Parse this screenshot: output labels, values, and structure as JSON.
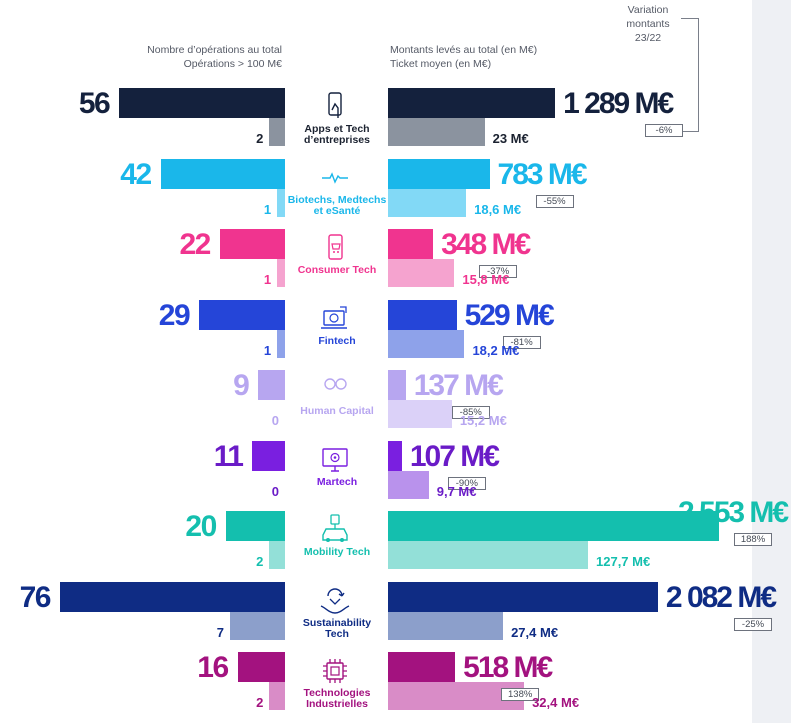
{
  "headers": {
    "left_line1": "Nombre d’opérations au total",
    "left_line2": "Opérations > 100 M€",
    "right_line1": "Montants levés au total (en M€)",
    "right_line2": "Ticket moyen (en M€)",
    "variation_line1": "Variation",
    "variation_line2": "montants",
    "variation_line3": "23/22"
  },
  "chart_data": {
    "type": "bar",
    "title": "",
    "orientation": "horizontal-butterfly",
    "categories": [
      "Apps et Tech d’entreprises",
      "Biotechs, Medtechs et eSanté",
      "Consumer Tech",
      "Fintech",
      "Human Capital",
      "Martech",
      "Mobility Tech",
      "Sustainability Tech",
      "Technologies Industrielles"
    ],
    "category_label_lines": [
      [
        "Apps et Tech",
        "d’entreprises"
      ],
      [
        "Biotechs, Medtechs",
        "et eSanté"
      ],
      [
        "Consumer Tech"
      ],
      [
        "Fintech"
      ],
      [
        "Human Capital"
      ],
      [
        "Martech"
      ],
      [
        "Mobility Tech"
      ],
      [
        "Sustainability",
        "Tech"
      ],
      [
        "Technologies",
        "Industrielles"
      ]
    ],
    "series": [
      {
        "name": "Nombre d’opérations au total",
        "values": [
          56,
          42,
          22,
          29,
          9,
          11,
          20,
          76,
          16
        ]
      },
      {
        "name": "Opérations > 100 M€",
        "values": [
          2,
          1,
          1,
          1,
          0,
          0,
          2,
          7,
          2
        ]
      },
      {
        "name": "Montants levés au total (en M€)",
        "values": [
          1289,
          783,
          348,
          529,
          137,
          107,
          2553,
          2082,
          518
        ]
      },
      {
        "name": "Ticket moyen (en M€)",
        "values": [
          23,
          18.6,
          15.8,
          18.2,
          15.2,
          9.7,
          127.7,
          27.4,
          32.4
        ]
      }
    ],
    "labels": {
      "operations": [
        "56",
        "42",
        "22",
        "29",
        "9",
        "11",
        "20",
        "76",
        "16"
      ],
      "ops_over_100": [
        "2",
        "1",
        "1",
        "1",
        "0",
        "0",
        "2",
        "7",
        "2"
      ],
      "amounts": [
        "1 289 M€",
        "783 M€",
        "348 M€",
        "529 M€",
        "137 M€",
        "107 M€",
        "2 553 M€",
        "2 082 M€",
        "518 M€"
      ],
      "tickets": [
        "23 M€",
        "18,6 M€",
        "15,8 M€",
        "18,2 M€",
        "15,2 M€",
        "9,7 M€",
        "127,7 M€",
        "27,4 M€",
        "32,4 M€"
      ],
      "variations": [
        "-6%",
        "-55%",
        "-37%",
        "-81%",
        "-85%",
        "-90%",
        "188%",
        "-25%",
        "138%"
      ]
    },
    "icons": [
      "smartphone-touch-icon",
      "heart-pulse-icon",
      "shopping-phone-icon",
      "fintech-laptop-icon",
      "people-icon",
      "monitor-target-icon",
      "car-charging-icon",
      "recycle-hands-icon",
      "chip-icon"
    ],
    "colors": [
      {
        "main": "#14213d",
        "light": "#8b939f",
        "amount_text": "#14213d"
      },
      {
        "main": "#1ab7ea",
        "light": "#82d9f6",
        "amount_text": "#1ab7ea"
      },
      {
        "main": "#f0348f",
        "light": "#f5a3cf",
        "amount_text": "#f0348f"
      },
      {
        "main": "#2545d8",
        "light": "#8ea2ea",
        "amount_text": "#2545d8"
      },
      {
        "main": "#b7a6f0",
        "light": "#dbd1f8",
        "amount_text": "#b7a6f0"
      },
      {
        "main": "#7a1fe0",
        "light": "#b992ec",
        "amount_text": "#6a1bc7"
      },
      {
        "main": "#14bfae",
        "light": "#93e0d8",
        "amount_text": "#14bfae"
      },
      {
        "main": "#0f2c84",
        "light": "#8c9fcb",
        "amount_text": "#0f2c84"
      },
      {
        "main": "#a3127f",
        "light": "#d98cc7",
        "amount_text": "#a3127f"
      }
    ],
    "grid": false,
    "legend": "none"
  }
}
